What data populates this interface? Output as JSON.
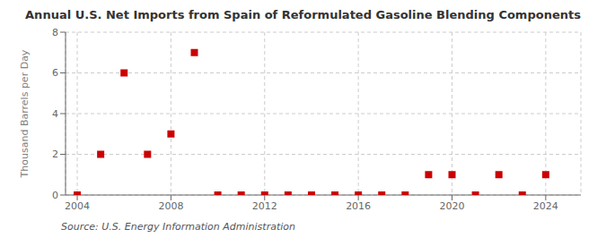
{
  "chart_data": {
    "type": "scatter",
    "title": "Annual U.S. Net Imports from Spain of Reformulated Gasoline Blending Components",
    "ylabel": "Thousand Barrels per Day",
    "annotations": [
      "Source: U.S. Energy Information Administration"
    ],
    "x": [
      2004,
      2005,
      2006,
      2007,
      2008,
      2009,
      2010,
      2011,
      2012,
      2013,
      2014,
      2015,
      2016,
      2017,
      2018,
      2019,
      2020,
      2021,
      2022,
      2023,
      2024
    ],
    "values": [
      0,
      2,
      6,
      2,
      3,
      7,
      0,
      0,
      0,
      0,
      0,
      0,
      0,
      0,
      0,
      1,
      1,
      0,
      1,
      0,
      1
    ],
    "xlim": [
      2003.5,
      2025.5
    ],
    "ylim": [
      0,
      8
    ],
    "xticks": [
      2004,
      2008,
      2012,
      2016,
      2020,
      2024
    ],
    "yticks": [
      0,
      2,
      4,
      6,
      8
    ],
    "color": "#cc0000",
    "marker": "square",
    "grid": true
  }
}
